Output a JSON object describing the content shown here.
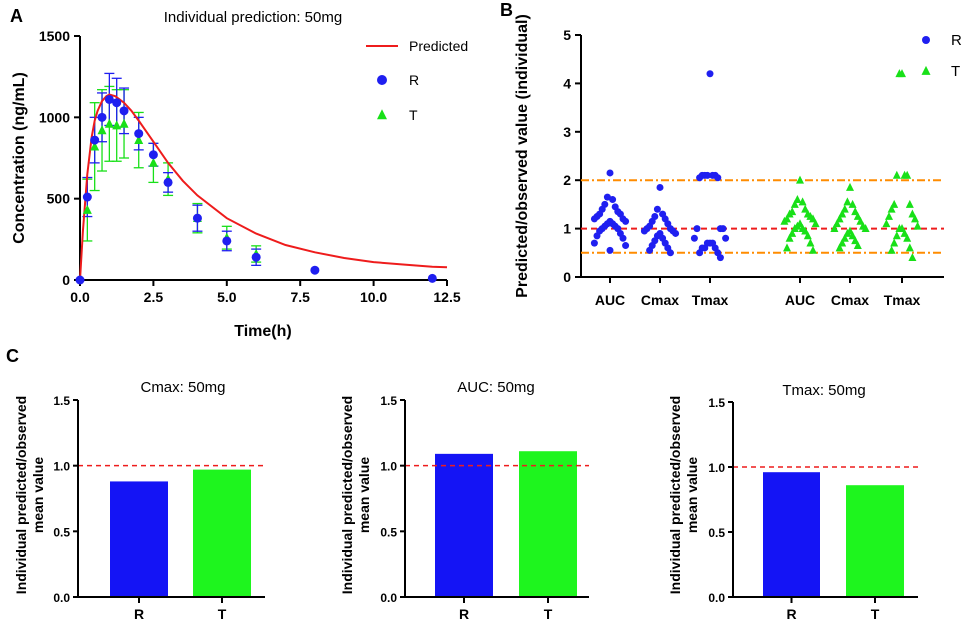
{
  "colors": {
    "red": "#ee1c1c",
    "blue": "#1f1ff0",
    "green": "#18e018",
    "orange": "#ff8c00",
    "axis": "#000000",
    "bar_blue": "#1414f5",
    "bar_green": "#1ef51e"
  },
  "chart_data": [
    {
      "panel": "A",
      "type": "line",
      "title": "Individual prediction: 50mg",
      "xlabel": "Time(h)",
      "ylabel": "Concentration (ng/mL)",
      "xlim": [
        0,
        12.5
      ],
      "ylim": [
        0,
        1500
      ],
      "xticks": [
        "0.0",
        "2.5",
        "5.0",
        "7.5",
        "10.0",
        "12.5"
      ],
      "yticks": [
        "0",
        "500",
        "1000",
        "1500"
      ],
      "legend": [
        "Predicted",
        "R",
        "T"
      ],
      "predicted": {
        "name": "Predicted",
        "x": [
          0,
          0.1,
          0.25,
          0.4,
          0.5,
          0.6,
          0.75,
          0.9,
          1.0,
          1.2,
          1.5,
          1.75,
          2.0,
          2.5,
          3.0,
          3.5,
          4.0,
          5.0,
          6.0,
          7.0,
          8.0,
          9.0,
          10.0,
          11.0,
          12.0,
          12.5
        ],
        "y": [
          0,
          300,
          650,
          880,
          980,
          1040,
          1100,
          1130,
          1140,
          1130,
          1090,
          1040,
          980,
          850,
          720,
          610,
          520,
          380,
          285,
          215,
          170,
          135,
          110,
          95,
          82,
          78
        ]
      },
      "R": {
        "name": "R",
        "x": [
          0,
          0.25,
          0.5,
          0.75,
          1.0,
          1.25,
          1.5,
          2.0,
          2.5,
          3.0,
          4.0,
          5.0,
          6.0,
          8.0,
          12.0
        ],
        "y": [
          0,
          510,
          860,
          1000,
          1110,
          1090,
          1040,
          900,
          770,
          600,
          380,
          240,
          140,
          60,
          10
        ],
        "err": [
          0,
          120,
          140,
          150,
          160,
          150,
          140,
          100,
          70,
          60,
          80,
          60,
          50,
          0,
          0
        ]
      },
      "T": {
        "name": "T",
        "x": [
          0.25,
          0.5,
          0.75,
          1.0,
          1.25,
          1.5,
          2.0,
          2.5,
          3.0,
          4.0,
          5.0,
          6.0
        ],
        "y": [
          430,
          820,
          920,
          960,
          950,
          960,
          860,
          720,
          620,
          380,
          260,
          160
        ],
        "err": [
          190,
          270,
          250,
          230,
          220,
          210,
          170,
          120,
          100,
          90,
          70,
          50
        ]
      }
    },
    {
      "panel": "B",
      "type": "scatter",
      "ylabel": "Predicted/observed value (individual)",
      "ylim": [
        0,
        5
      ],
      "yticks": [
        "0",
        "1",
        "2",
        "3",
        "4",
        "5"
      ],
      "categories": [
        "AUC",
        "Cmax",
        "Tmax",
        "AUC",
        "Cmax",
        "Tmax"
      ],
      "reference_lines": [
        0.5,
        1,
        2
      ],
      "legend": [
        "R",
        "T"
      ],
      "R": {
        "AUC": [
          2.15,
          1.65,
          1.6,
          1.5,
          1.45,
          1.4,
          1.35,
          1.3,
          1.3,
          1.25,
          1.2,
          1.2,
          1.15,
          1.15,
          1.1,
          1.1,
          1.05,
          1.05,
          1.0,
          1.0,
          0.95,
          0.9,
          0.85,
          0.8,
          0.7,
          0.65,
          0.55
        ],
        "Cmax": [
          1.85,
          1.4,
          1.3,
          1.25,
          1.2,
          1.15,
          1.1,
          1.05,
          1.0,
          1.0,
          0.95,
          0.95,
          0.9,
          0.9,
          0.85,
          0.8,
          0.75,
          0.7,
          0.65,
          0.6,
          0.55,
          0.5
        ],
        "Tmax": [
          4.2,
          2.1,
          2.1,
          2.1,
          2.1,
          2.1,
          2.05,
          2.05,
          1.0,
          1.0,
          1.0,
          0.8,
          0.8,
          0.7,
          0.7,
          0.7,
          0.6,
          0.6,
          0.6,
          0.5,
          0.5,
          0.4
        ]
      },
      "T": {
        "AUC": [
          2.0,
          1.6,
          1.55,
          1.5,
          1.4,
          1.35,
          1.3,
          1.3,
          1.25,
          1.2,
          1.2,
          1.15,
          1.1,
          1.1,
          1.05,
          1.0,
          1.0,
          0.95,
          0.9,
          0.85,
          0.8,
          0.7,
          0.6,
          0.55
        ],
        "Cmax": [
          1.85,
          1.55,
          1.5,
          1.4,
          1.35,
          1.3,
          1.25,
          1.2,
          1.15,
          1.1,
          1.05,
          1.0,
          1.0,
          0.95,
          0.9,
          0.85,
          0.8,
          0.75,
          0.7,
          0.65,
          0.6
        ],
        "Tmax": [
          4.2,
          4.2,
          2.1,
          2.1,
          2.1,
          1.5,
          1.5,
          1.4,
          1.3,
          1.25,
          1.2,
          1.1,
          1.05,
          1.0,
          1.0,
          0.9,
          0.85,
          0.8,
          0.7,
          0.6,
          0.55,
          0.4
        ]
      }
    },
    {
      "panel": "C",
      "type": "bar",
      "title": "Cmax: 50mg",
      "ylabel": "Individual predicted/observed mean value",
      "categories": [
        "R",
        "T"
      ],
      "values": [
        0.88,
        0.97
      ],
      "ylim": [
        0,
        1.5
      ],
      "yticks": [
        "0.0",
        "0.5",
        "1.0",
        "1.5"
      ],
      "reference_line": 1.0
    },
    {
      "panel": "C",
      "type": "bar",
      "title": "AUC: 50mg",
      "ylabel": "Individual predicted/observed mean value",
      "categories": [
        "R",
        "T"
      ],
      "values": [
        1.09,
        1.11
      ],
      "ylim": [
        0,
        1.5
      ],
      "yticks": [
        "0.0",
        "0.5",
        "1.0",
        "1.5"
      ],
      "reference_line": 1.0
    },
    {
      "panel": "C",
      "type": "bar",
      "title": "Tmax: 50mg",
      "ylabel": "Individual predicted/observed mean value",
      "categories": [
        "R",
        "T"
      ],
      "values": [
        0.96,
        0.86
      ],
      "ylim": [
        0,
        1.5
      ],
      "yticks": [
        "0.0",
        "0.5",
        "1.0",
        "1.5"
      ],
      "reference_line": 1.0
    }
  ],
  "panel_labels": [
    "A",
    "B",
    "C"
  ]
}
